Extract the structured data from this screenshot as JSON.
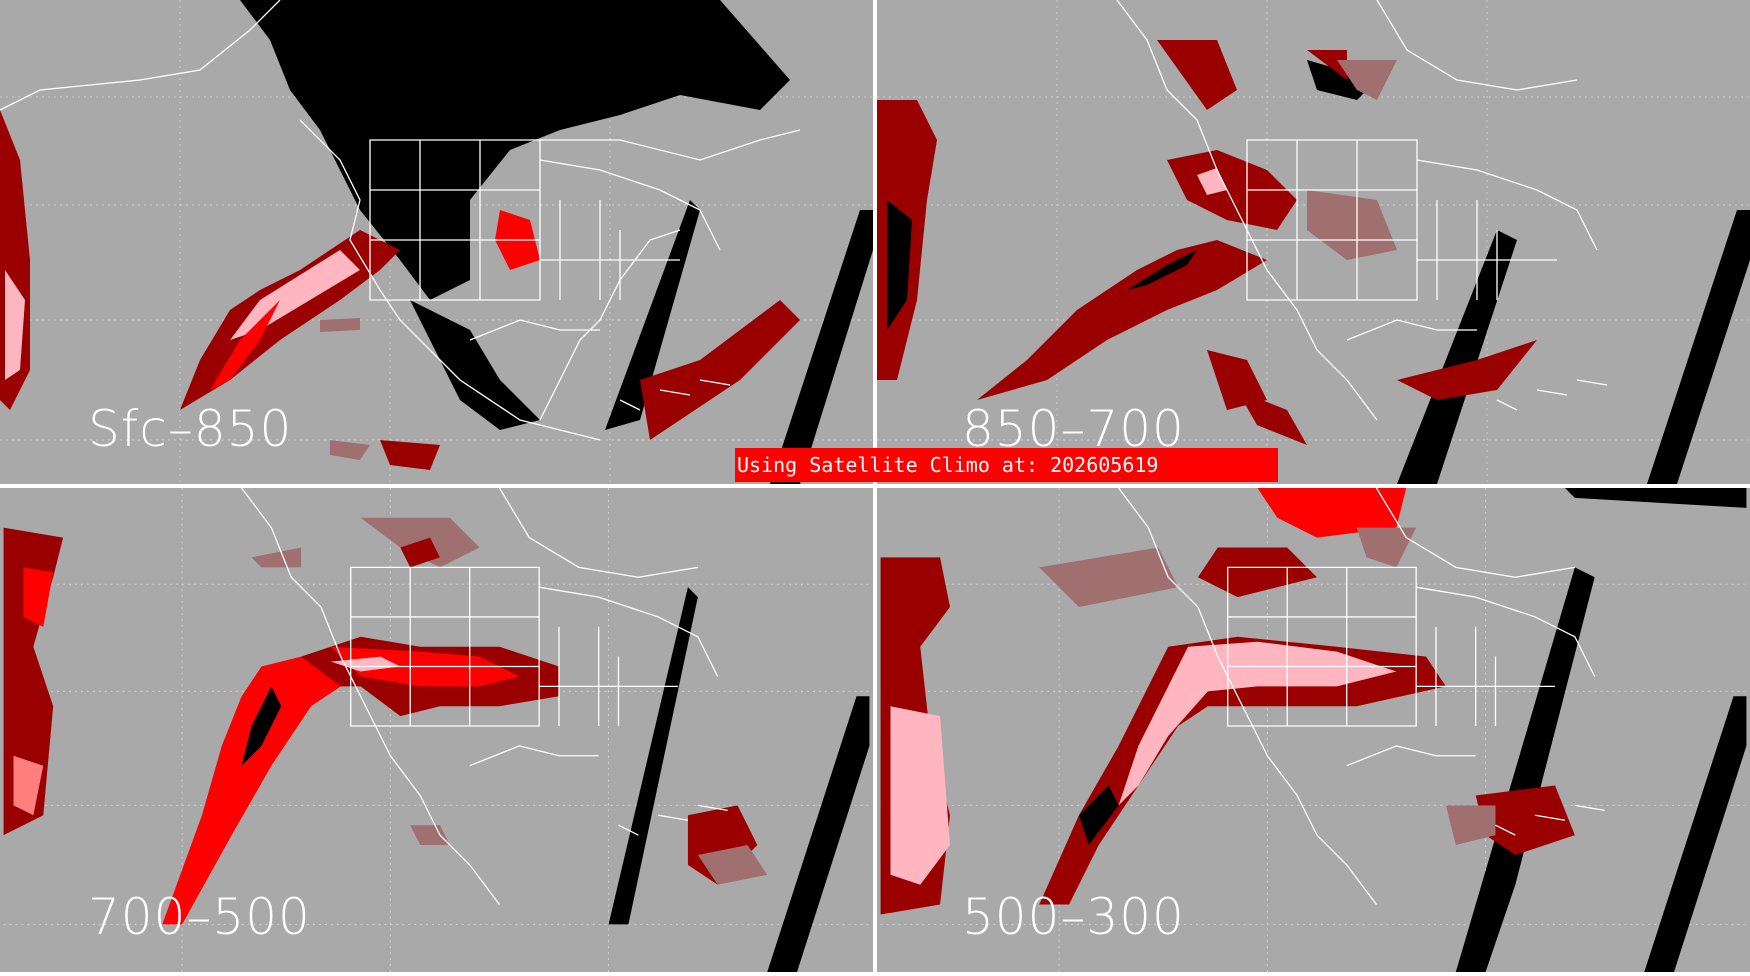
{
  "panels": [
    {
      "id": "tl",
      "label": "Sfc–850"
    },
    {
      "id": "tr",
      "label": "850–700"
    },
    {
      "id": "bl",
      "label": "700–500"
    },
    {
      "id": "br",
      "label": "500–300"
    }
  ],
  "banner": {
    "text": "Using Satellite Climo at: 202605619"
  },
  "colors": {
    "background": "#a9a9a9",
    "no_data": "#000000",
    "dark_red": "#9a0000",
    "bright_red": "#ff0000",
    "pink": "#ffb6c1",
    "muted": "#a07070",
    "borders": "#ffffff"
  }
}
